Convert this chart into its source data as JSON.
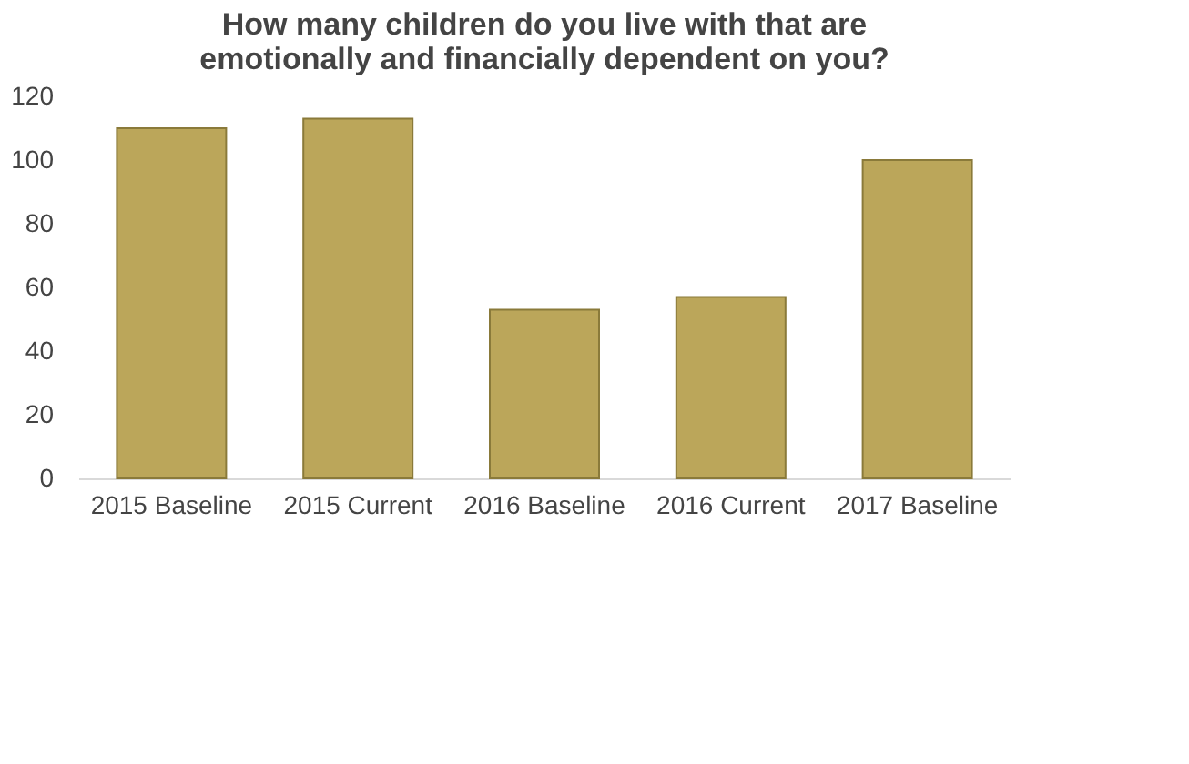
{
  "chart_data": {
    "type": "bar",
    "title": "How many children do you live with that are emotionally and financially dependent on you?",
    "categories": [
      "2015 Baseline",
      "2015 Current",
      "2016 Baseline",
      "2016 Current",
      "2017 Baseline"
    ],
    "values": [
      110,
      113,
      53,
      57,
      100
    ],
    "color": "#bba65a",
    "ylim": [
      0,
      120
    ],
    "yticks": [
      0,
      20,
      40,
      60,
      80,
      100,
      120
    ],
    "grid": false
  }
}
